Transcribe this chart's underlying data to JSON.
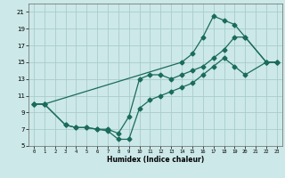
{
  "xlabel": "Humidex (Indice chaleur)",
  "bg_color": "#cce8e8",
  "grid_color": "#aacccc",
  "line_color": "#1a6b5a",
  "xlim": [
    -0.5,
    23.5
  ],
  "ylim": [
    5,
    22
  ],
  "xticks": [
    0,
    1,
    2,
    3,
    4,
    5,
    6,
    7,
    8,
    9,
    10,
    11,
    12,
    13,
    14,
    15,
    16,
    17,
    18,
    19,
    20,
    21,
    22,
    23
  ],
  "yticks": [
    5,
    7,
    9,
    11,
    13,
    15,
    17,
    19,
    21
  ],
  "line1_x": [
    0,
    1,
    14,
    15,
    16,
    17,
    18,
    19,
    20,
    22,
    23
  ],
  "line1_y": [
    10,
    10,
    15,
    16,
    18,
    20.5,
    20,
    19.5,
    18,
    15,
    15
  ],
  "line2_x": [
    0,
    1,
    3,
    4,
    5,
    6,
    7,
    8,
    9,
    10,
    11,
    12,
    13,
    14,
    15,
    16,
    17,
    18,
    19,
    20,
    22,
    23
  ],
  "line2_y": [
    10,
    10,
    7.5,
    7.2,
    7.2,
    7.0,
    7.0,
    6.5,
    8.5,
    13,
    13.5,
    13.5,
    13,
    13.5,
    14,
    14.5,
    15.5,
    16.5,
    18,
    18,
    15,
    15
  ],
  "line3_x": [
    0,
    1,
    3,
    4,
    5,
    6,
    7,
    8,
    9,
    10,
    11,
    12,
    13,
    14,
    15,
    16,
    17,
    18,
    19,
    20,
    22,
    23
  ],
  "line3_y": [
    10,
    10,
    7.5,
    7.2,
    7.2,
    7.0,
    6.8,
    5.8,
    5.8,
    9.5,
    10.5,
    11,
    11.5,
    12,
    12.5,
    13.5,
    14.5,
    15.5,
    14.5,
    13.5,
    15,
    15
  ]
}
